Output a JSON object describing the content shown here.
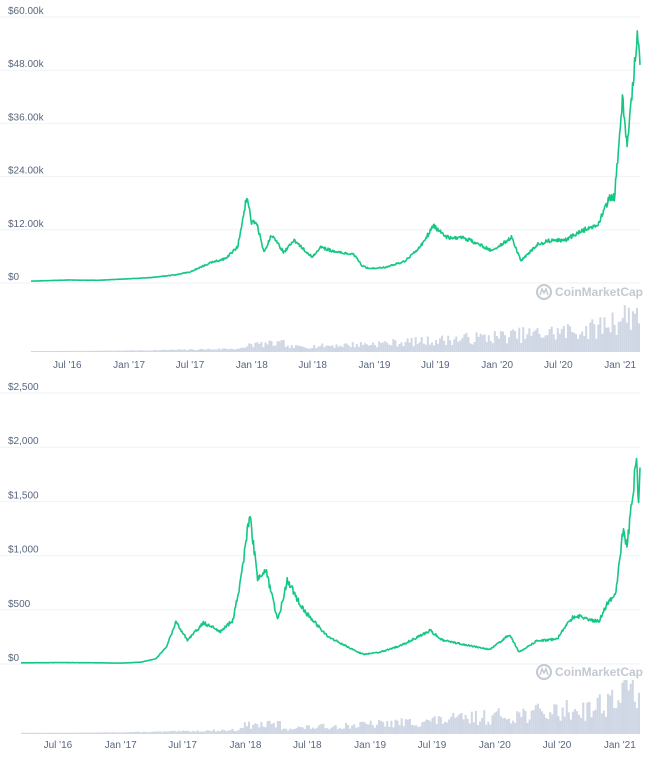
{
  "watermark": "CoinMarketCap",
  "colors": {
    "line": "#16c784",
    "volume": "#cfd6e4",
    "grid": "#eff2f5",
    "axis_text": "#58667e",
    "watermark": "#c3c9d1"
  },
  "icons": {
    "watermark_logo": "coinmarketcap-logo-icon"
  },
  "chart_data": [
    {
      "type": "line",
      "title": "",
      "xlabel": "",
      "ylabel": "",
      "x_ticks": [
        "Jul '16",
        "Jan '17",
        "Jul '17",
        "Jan '18",
        "Jul '18",
        "Jan '19",
        "Jul '19",
        "Jan '20",
        "Jul '20",
        "Jan '21"
      ],
      "y_ticks": [
        "$0",
        "$12.00k",
        "$24.00k",
        "$36.00k",
        "$48.00k",
        "$60.00k"
      ],
      "ylim": [
        0,
        60000
      ],
      "xlim": [
        "2016-03-15",
        "2021-03-01"
      ],
      "grid": true,
      "series": [
        {
          "x": [
            "2016-03-15",
            "2016-07-01",
            "2016-10-01",
            "2017-01-01",
            "2017-03-01",
            "2017-05-15",
            "2017-07-01",
            "2017-09-01",
            "2017-10-15",
            "2017-11-20",
            "2017-12-17",
            "2018-01-01",
            "2018-01-15",
            "2018-02-06",
            "2018-03-01",
            "2018-04-06",
            "2018-05-05",
            "2018-06-29",
            "2018-07-25",
            "2018-09-01",
            "2018-11-01",
            "2018-11-25",
            "2018-12-15",
            "2019-02-01",
            "2019-04-01",
            "2019-05-15",
            "2019-06-26",
            "2019-08-01",
            "2019-09-20",
            "2019-10-26",
            "2019-12-18",
            "2020-02-13",
            "2020-03-12",
            "2020-04-30",
            "2020-06-01",
            "2020-07-25",
            "2020-09-01",
            "2020-10-25",
            "2020-11-30",
            "2020-12-15",
            "2021-01-08",
            "2021-01-22",
            "2021-02-10",
            "2021-02-21",
            "2021-03-01"
          ],
          "values": [
            420,
            670,
            610,
            960,
            1200,
            1800,
            2500,
            4600,
            5500,
            8200,
            19500,
            13500,
            13800,
            6900,
            11000,
            6900,
            9700,
            5900,
            8200,
            7100,
            6400,
            3900,
            3300,
            3500,
            4900,
            7900,
            12900,
            10300,
            10200,
            9200,
            7200,
            10300,
            5000,
            8700,
            9500,
            9700,
            11600,
            13000,
            19200,
            19400,
            41000,
            31000,
            46500,
            57000,
            49600
          ]
        }
      ]
    },
    {
      "type": "line",
      "title": "",
      "xlabel": "",
      "ylabel": "",
      "x_ticks": [
        "Jul '16",
        "Jan '17",
        "Jul '17",
        "Jan '18",
        "Jul '18",
        "Jan '19",
        "Jul '19",
        "Jan '20",
        "Jul '20",
        "Jan '21"
      ],
      "y_ticks": [
        "$0",
        "$500",
        "$1,000",
        "$1,500",
        "$2,000",
        "$2,500"
      ],
      "ylim": [
        0,
        2500
      ],
      "xlim": [
        "2016-03-15",
        "2021-03-01"
      ],
      "grid": true,
      "series": [
        {
          "x": [
            "2016-03-15",
            "2016-07-01",
            "2016-10-01",
            "2017-01-01",
            "2017-03-01",
            "2017-04-15",
            "2017-05-15",
            "2017-06-12",
            "2017-07-15",
            "2017-09-01",
            "2017-10-20",
            "2017-11-25",
            "2017-12-20",
            "2018-01-13",
            "2018-02-06",
            "2018-03-01",
            "2018-04-06",
            "2018-05-04",
            "2018-06-01",
            "2018-07-01",
            "2018-09-01",
            "2018-11-25",
            "2018-12-15",
            "2019-02-01",
            "2019-04-01",
            "2019-06-26",
            "2019-08-01",
            "2019-10-01",
            "2019-12-18",
            "2020-02-13",
            "2020-03-12",
            "2020-05-01",
            "2020-07-01",
            "2020-08-15",
            "2020-09-01",
            "2020-11-01",
            "2020-11-30",
            "2020-12-20",
            "2021-01-10",
            "2021-01-22",
            "2021-02-01",
            "2021-02-20",
            "2021-02-24",
            "2021-03-01"
          ],
          "values": [
            11,
            13,
            12,
            8,
            17,
            50,
            160,
            390,
            220,
            380,
            300,
            400,
            800,
            1380,
            780,
            870,
            400,
            780,
            600,
            460,
            250,
            110,
            90,
            110,
            170,
            310,
            220,
            180,
            135,
            270,
            110,
            210,
            230,
            430,
            440,
            390,
            590,
            640,
            1230,
            1100,
            1350,
            1940,
            1480,
            1800
          ]
        }
      ]
    }
  ]
}
